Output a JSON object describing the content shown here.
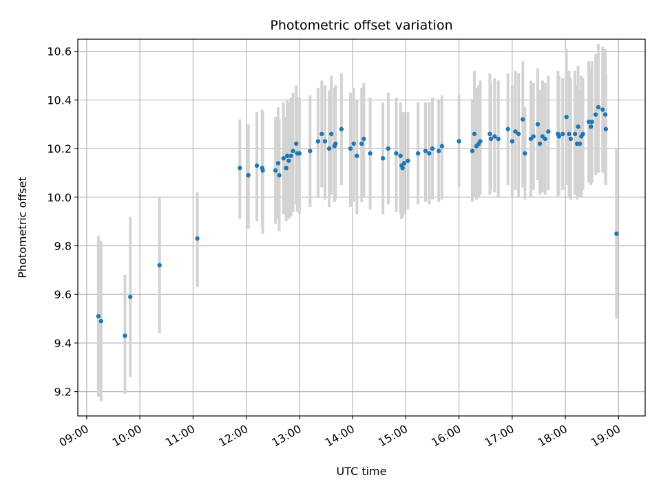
{
  "chart_data": {
    "type": "scatter",
    "title": "Photometric offset variation",
    "xlabel": "UTC time",
    "ylabel": "Photometric offset",
    "grid": true,
    "legend": "none",
    "x_unit": "hours UTC",
    "xlim": [
      8.8333,
      19.5
    ],
    "ylim": [
      9.1,
      10.65
    ],
    "xticks": [
      {
        "value": 9,
        "label": "09:00"
      },
      {
        "value": 10,
        "label": "10:00"
      },
      {
        "value": 11,
        "label": "11:00"
      },
      {
        "value": 12,
        "label": "12:00"
      },
      {
        "value": 13,
        "label": "13:00"
      },
      {
        "value": 14,
        "label": "14:00"
      },
      {
        "value": 15,
        "label": "15:00"
      },
      {
        "value": 16,
        "label": "16:00"
      },
      {
        "value": 17,
        "label": "17:00"
      },
      {
        "value": 18,
        "label": "18:00"
      },
      {
        "value": 19,
        "label": "19:00"
      }
    ],
    "yticks": [
      {
        "value": 9.2,
        "label": "9.2"
      },
      {
        "value": 9.4,
        "label": "9.4"
      },
      {
        "value": 9.6,
        "label": "9.6"
      },
      {
        "value": 9.8,
        "label": "9.8"
      },
      {
        "value": 10.0,
        "label": "10.0"
      },
      {
        "value": 10.2,
        "label": "10.2"
      },
      {
        "value": 10.4,
        "label": "10.4"
      },
      {
        "value": 10.6,
        "label": "10.6"
      }
    ],
    "colors": {
      "point": "#1f77b4",
      "errorbar": "#d3d3d3",
      "grid": "#b0b0b0"
    },
    "series": [
      {
        "x": [
          9.22,
          9.27,
          9.72,
          9.82,
          10.37,
          11.08,
          11.88,
          12.04,
          12.2,
          12.3,
          12.31,
          12.55,
          12.6,
          12.62,
          12.7,
          12.75,
          12.77,
          12.8,
          12.84,
          12.88,
          12.94,
          12.96,
          13.0,
          13.2,
          13.35,
          13.42,
          13.48,
          13.56,
          13.6,
          13.66,
          13.68,
          13.79,
          13.96,
          14.02,
          14.08,
          14.17,
          14.21,
          14.33,
          14.57,
          14.67,
          14.82,
          14.9,
          14.92,
          14.94,
          14.97,
          15.04,
          15.23,
          15.37,
          15.44,
          15.5,
          15.62,
          15.68,
          16.0,
          16.25,
          16.29,
          16.33,
          16.37,
          16.4,
          16.58,
          16.6,
          16.67,
          16.74,
          16.92,
          17.0,
          17.06,
          17.12,
          17.2,
          17.24,
          17.35,
          17.4,
          17.48,
          17.52,
          17.57,
          17.62,
          17.68,
          17.86,
          17.88,
          17.95,
          18.02,
          18.07,
          18.1,
          18.18,
          18.22,
          18.24,
          18.27,
          18.3,
          18.33,
          18.44,
          18.48,
          18.5,
          18.57,
          18.62,
          18.7,
          18.75,
          18.76,
          18.96
        ],
        "y": [
          9.51,
          9.49,
          9.43,
          9.59,
          9.72,
          9.83,
          10.12,
          10.09,
          10.13,
          10.12,
          10.11,
          10.11,
          10.14,
          10.09,
          10.16,
          10.12,
          10.17,
          10.15,
          10.17,
          10.19,
          10.22,
          10.18,
          10.18,
          10.19,
          10.23,
          10.26,
          10.23,
          10.2,
          10.26,
          10.21,
          10.22,
          10.28,
          10.2,
          10.22,
          10.17,
          10.22,
          10.24,
          10.18,
          10.16,
          10.2,
          10.18,
          10.17,
          10.13,
          10.12,
          10.14,
          10.15,
          10.18,
          10.19,
          10.18,
          10.2,
          10.19,
          10.21,
          10.23,
          10.19,
          10.26,
          10.21,
          10.22,
          10.23,
          10.26,
          10.24,
          10.25,
          10.24,
          10.28,
          10.23,
          10.27,
          10.26,
          10.32,
          10.18,
          10.24,
          10.25,
          10.3,
          10.22,
          10.25,
          10.24,
          10.27,
          10.26,
          10.25,
          10.26,
          10.33,
          10.26,
          10.24,
          10.26,
          10.22,
          10.29,
          10.22,
          10.25,
          10.26,
          10.31,
          10.29,
          10.31,
          10.34,
          10.37,
          10.36,
          10.34,
          10.28,
          9.85
        ],
        "ylow": [
          9.18,
          9.16,
          9.19,
          9.26,
          9.44,
          9.63,
          9.91,
          9.87,
          9.9,
          9.88,
          9.85,
          9.89,
          9.91,
          9.86,
          9.93,
          9.9,
          9.93,
          9.91,
          9.92,
          9.94,
          9.97,
          9.94,
          9.93,
          9.96,
          10.0,
          10.04,
          9.99,
          9.96,
          10.01,
          9.98,
          9.99,
          10.05,
          9.96,
          9.98,
          9.93,
          9.98,
          10.0,
          9.95,
          9.93,
          9.97,
          9.94,
          9.93,
          9.91,
          9.92,
          9.93,
          9.95,
          9.97,
          9.98,
          9.97,
          9.99,
          9.98,
          9.99,
          10.04,
          9.98,
          10.0,
          9.99,
          10.0,
          10.01,
          10.01,
          10.03,
          10.02,
          10.0,
          10.05,
          10.0,
          10.03,
          10.0,
          10.04,
          9.99,
          10.0,
          10.03,
          10.07,
          10.01,
          10.02,
          10.01,
          10.03,
          10.0,
          10.01,
          10.03,
          10.05,
          10.0,
          9.99,
          10.01,
          9.99,
          10.04,
          10.0,
          10.0,
          10.03,
          10.06,
          10.05,
          10.06,
          10.09,
          10.1,
          10.1,
          10.07,
          10.05,
          9.5
        ],
        "yhigh": [
          9.84,
          9.82,
          9.68,
          9.92,
          10.0,
          10.02,
          10.32,
          10.3,
          10.35,
          10.36,
          10.35,
          10.33,
          10.37,
          10.32,
          10.39,
          10.33,
          10.4,
          10.39,
          10.41,
          10.43,
          10.46,
          10.41,
          10.41,
          10.42,
          10.45,
          10.48,
          10.46,
          10.44,
          10.5,
          10.45,
          10.46,
          10.51,
          10.43,
          10.45,
          10.4,
          10.45,
          10.47,
          10.41,
          10.39,
          10.43,
          10.41,
          10.39,
          10.35,
          10.32,
          10.35,
          10.35,
          10.39,
          10.39,
          10.39,
          10.41,
          10.4,
          10.42,
          10.42,
          10.4,
          10.52,
          10.45,
          10.46,
          10.48,
          10.51,
          10.47,
          10.49,
          10.48,
          10.51,
          10.46,
          10.52,
          10.51,
          10.56,
          10.37,
          10.48,
          10.47,
          10.53,
          10.44,
          10.48,
          10.47,
          10.5,
          10.52,
          10.5,
          10.49,
          10.61,
          10.52,
          10.49,
          10.52,
          10.46,
          10.54,
          10.44,
          10.5,
          10.49,
          10.56,
          10.53,
          10.56,
          10.59,
          10.63,
          10.62,
          10.61,
          10.51,
          10.2
        ]
      }
    ]
  }
}
